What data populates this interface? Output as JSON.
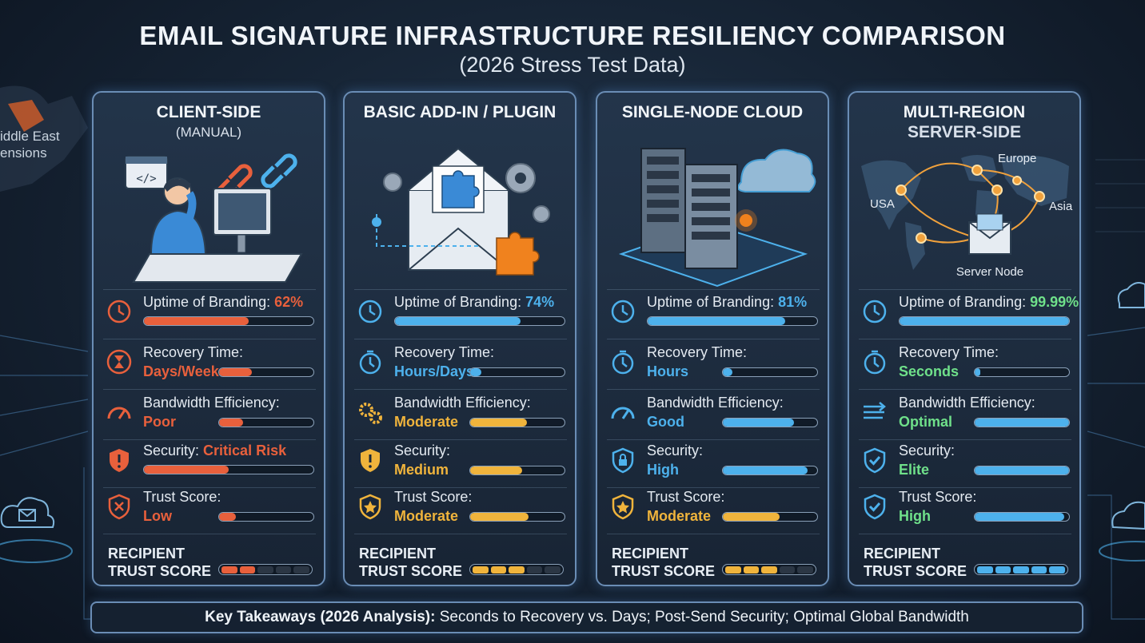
{
  "header": {
    "title": "EMAIL SIGNATURE INFRASTRUCTURE RESILIENCY COMPARISON",
    "subtitle": "(2026 Stress Test Data)"
  },
  "background": {
    "map_label_line1": "iddle East",
    "map_label_line2": "ensions"
  },
  "colors": {
    "red": "#e8603c",
    "blue": "#4db1ec",
    "yellow": "#f0b43c",
    "green": "#6fe08a",
    "card_border": "#6a8db5"
  },
  "cards": [
    {
      "title": "CLIENT-SIDE",
      "subtitle": "(MANUAL)",
      "illustration": "frustrated user at desktop computer with code window and broken link icons",
      "metrics": {
        "uptime": {
          "label": "Uptime of Branding:",
          "value": "62%",
          "level": 0.62,
          "color": "#e8603c",
          "icon": "clock-icon"
        },
        "recovery": {
          "label": "Recovery Time:",
          "value": "Days/Weeks",
          "level": 0.35,
          "color": "#e8603c",
          "icon": "hourglass-icon"
        },
        "bandwidth": {
          "label": "Bandwidth Efficiency:",
          "value": "Poor",
          "level": 0.25,
          "color": "#e8603c",
          "icon": "gauge-icon"
        },
        "security": {
          "label": "Security:",
          "value": "Critical Risk",
          "level": 0.5,
          "color": "#e8603c",
          "icon": "shield-warning-icon"
        },
        "trust": {
          "label": "Trust Score:",
          "value": "Low",
          "level": 0.18,
          "color": "#e8603c",
          "icon": "shield-x-icon"
        }
      },
      "recipient_label_1": "RECIPIENT",
      "recipient_label_2": "TRUST SCORE",
      "recipient_segments_filled": 2,
      "recipient_segments_total": 5,
      "recipient_color": "#e8603c"
    },
    {
      "title": "BASIC ADD-IN / PLUGIN",
      "subtitle": "",
      "illustration": "envelope with puzzle pieces and gears",
      "metrics": {
        "uptime": {
          "label": "Uptime of Branding:",
          "value": "74%",
          "level": 0.74,
          "color": "#4db1ec",
          "icon": "clock-icon"
        },
        "recovery": {
          "label": "Recovery Time:",
          "value": "Hours/Days",
          "level": 0.12,
          "color": "#4db1ec",
          "icon": "stopwatch-icon"
        },
        "bandwidth": {
          "label": "Bandwidth Efficiency:",
          "value": "Moderate",
          "level": 0.6,
          "color": "#f0b43c",
          "icon": "gears-icon"
        },
        "security": {
          "label": "Security:",
          "value": "Medium",
          "level": 0.55,
          "color": "#f0b43c",
          "icon": "shield-warning-icon"
        },
        "trust": {
          "label": "Trust Score:",
          "value": "Moderate",
          "level": 0.62,
          "color": "#f0b43c",
          "icon": "shield-star-icon"
        }
      },
      "recipient_label_1": "RECIPIENT",
      "recipient_label_2": "TRUST SCORE",
      "recipient_segments_filled": 3,
      "recipient_segments_total": 5,
      "recipient_color": "#f0b43c"
    },
    {
      "title": "SINGLE-NODE CLOUD",
      "subtitle": "",
      "illustration": "server racks on platform with cloud",
      "metrics": {
        "uptime": {
          "label": "Uptime of Branding:",
          "value": "81%",
          "level": 0.81,
          "color": "#4db1ec",
          "icon": "clock-icon"
        },
        "recovery": {
          "label": "Recovery Time:",
          "value": "Hours",
          "level": 0.1,
          "color": "#4db1ec",
          "icon": "stopwatch-icon"
        },
        "bandwidth": {
          "label": "Bandwidth Efficiency:",
          "value": "Good",
          "level": 0.75,
          "color": "#4db1ec",
          "icon": "gauge-icon"
        },
        "security": {
          "label": "Security:",
          "value": "High",
          "level": 0.9,
          "color": "#4db1ec",
          "icon": "shield-lock-icon"
        },
        "trust": {
          "label": "Trust Score:",
          "value": "Moderate",
          "level": 0.6,
          "color": "#f0b43c",
          "icon": "shield-star-icon"
        }
      },
      "recipient_label_1": "RECIPIENT",
      "recipient_label_2": "TRUST SCORE",
      "recipient_segments_filled": 3,
      "recipient_segments_total": 5,
      "recipient_color": "#f0b43c"
    },
    {
      "title": "MULTI-REGION",
      "subtitle": "SERVER-SIDE",
      "illustration": "world map with region nodes routing to server node",
      "map_labels": {
        "usa": "USA",
        "europe": "Europe",
        "asia": "Asia",
        "server": "Server Node"
      },
      "metrics": {
        "uptime": {
          "label": "Uptime of Branding:",
          "value": "99.99%",
          "level": 0.9999,
          "color": "#4db1ec",
          "value_color": "#6fe08a",
          "icon": "clock-icon"
        },
        "recovery": {
          "label": "Recovery Time:",
          "value": "Seconds",
          "level": 0.03,
          "color": "#4db1ec",
          "value_color": "#6fe08a",
          "icon": "stopwatch-icon"
        },
        "bandwidth": {
          "label": "Bandwidth Efficiency:",
          "value": "Optimal",
          "level": 1.0,
          "color": "#4db1ec",
          "value_color": "#6fe08a",
          "icon": "fast-arrows-icon"
        },
        "security": {
          "label": "Security:",
          "value": "Elite",
          "level": 1.0,
          "color": "#4db1ec",
          "value_color": "#6fe08a",
          "icon": "shield-check-icon"
        },
        "trust": {
          "label": "Trust Score:",
          "value": "High",
          "level": 0.95,
          "color": "#4db1ec",
          "value_color": "#6fe08a",
          "icon": "shield-check-icon"
        }
      },
      "recipient_label_1": "RECIPIENT",
      "recipient_label_2": "TRUST SCORE",
      "recipient_segments_filled": 5,
      "recipient_segments_total": 5,
      "recipient_color": "#4db1ec"
    }
  ],
  "footer": {
    "lead": "Key Takeaways (2026 Analysis):",
    "text": " Seconds to Recovery vs. Days; Post-Send Security; Optimal Global Bandwidth"
  }
}
